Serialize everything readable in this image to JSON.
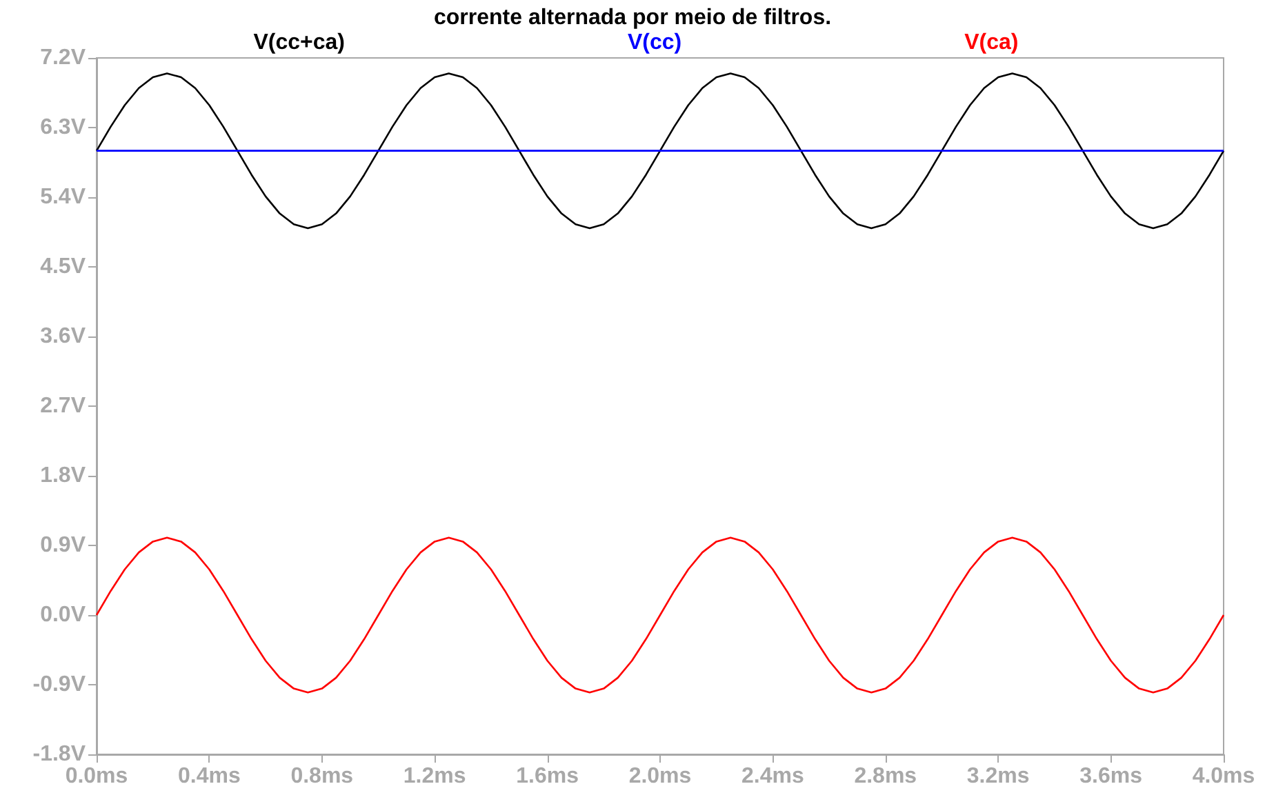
{
  "chart_data": {
    "type": "line",
    "title": "corrente alternada por meio de filtros.",
    "x": [
      0,
      0.05,
      0.1,
      0.15,
      0.2,
      0.25,
      0.3,
      0.35,
      0.4,
      0.45,
      0.5,
      0.55,
      0.6,
      0.65,
      0.7,
      0.75,
      0.8,
      0.85,
      0.9,
      0.95,
      1,
      1.05,
      1.1,
      1.15,
      1.2,
      1.25,
      1.3,
      1.35,
      1.4,
      1.45,
      1.5,
      1.55,
      1.6,
      1.65,
      1.7,
      1.75,
      1.8,
      1.85,
      1.9,
      1.95,
      2,
      2.05,
      2.1,
      2.15,
      2.2,
      2.25,
      2.3,
      2.35,
      2.4,
      2.45,
      2.5,
      2.55,
      2.6,
      2.65,
      2.7,
      2.75,
      2.8,
      2.85,
      2.9,
      2.95,
      3,
      3.05,
      3.1,
      3.15,
      3.2,
      3.25,
      3.3,
      3.35,
      3.4,
      3.45,
      3.5,
      3.55,
      3.6,
      3.65,
      3.7,
      3.75,
      3.8,
      3.85,
      3.9,
      3.95,
      4
    ],
    "series": [
      {
        "name": "V(cc+ca)",
        "color": "#000000",
        "values": [
          6,
          6.31,
          6.59,
          6.81,
          6.95,
          7,
          6.95,
          6.81,
          6.59,
          6.31,
          6,
          5.69,
          5.41,
          5.19,
          5.05,
          5,
          5.05,
          5.19,
          5.41,
          5.69,
          6,
          6.31,
          6.59,
          6.81,
          6.95,
          7,
          6.95,
          6.81,
          6.59,
          6.31,
          6,
          5.69,
          5.41,
          5.19,
          5.05,
          5,
          5.05,
          5.19,
          5.41,
          5.69,
          6,
          6.31,
          6.59,
          6.81,
          6.95,
          7,
          6.95,
          6.81,
          6.59,
          6.31,
          6,
          5.69,
          5.41,
          5.19,
          5.05,
          5,
          5.05,
          5.19,
          5.41,
          5.69,
          6,
          6.31,
          6.59,
          6.81,
          6.95,
          7,
          6.95,
          6.81,
          6.59,
          6.31,
          6,
          5.69,
          5.41,
          5.19,
          5.05,
          5,
          5.05,
          5.19,
          5.41,
          5.69,
          6
        ]
      },
      {
        "name": "V(cc)",
        "color": "#0000ff",
        "values": [
          6,
          6,
          6,
          6,
          6,
          6,
          6,
          6,
          6,
          6,
          6,
          6,
          6,
          6,
          6,
          6,
          6,
          6,
          6,
          6,
          6,
          6,
          6,
          6,
          6,
          6,
          6,
          6,
          6,
          6,
          6,
          6,
          6,
          6,
          6,
          6,
          6,
          6,
          6,
          6,
          6,
          6,
          6,
          6,
          6,
          6,
          6,
          6,
          6,
          6,
          6,
          6,
          6,
          6,
          6,
          6,
          6,
          6,
          6,
          6,
          6,
          6,
          6,
          6,
          6,
          6,
          6,
          6,
          6,
          6,
          6,
          6,
          6,
          6,
          6,
          6,
          6,
          6,
          6,
          6,
          6
        ]
      },
      {
        "name": "V(ca)",
        "color": "#ff0000",
        "values": [
          0,
          0.31,
          0.59,
          0.81,
          0.95,
          1,
          0.95,
          0.81,
          0.59,
          0.31,
          0,
          -0.31,
          -0.59,
          -0.81,
          -0.95,
          -1,
          -0.95,
          -0.81,
          -0.59,
          -0.31,
          0,
          0.31,
          0.59,
          0.81,
          0.95,
          1,
          0.95,
          0.81,
          0.59,
          0.31,
          0,
          -0.31,
          -0.59,
          -0.81,
          -0.95,
          -1,
          -0.95,
          -0.81,
          -0.59,
          -0.31,
          0,
          0.31,
          0.59,
          0.81,
          0.95,
          1,
          0.95,
          0.81,
          0.59,
          0.31,
          0,
          -0.31,
          -0.59,
          -0.81,
          -0.95,
          -1,
          -0.95,
          -0.81,
          -0.59,
          -0.31,
          0,
          0.31,
          0.59,
          0.81,
          0.95,
          1,
          0.95,
          0.81,
          0.59,
          0.31,
          0,
          -0.31,
          -0.59,
          -0.81,
          -0.95,
          -1,
          -0.95,
          -0.81,
          -0.59,
          -0.31,
          0
        ]
      }
    ],
    "xlim": [
      0,
      4
    ],
    "xticks": [
      {
        "value": 0,
        "label": "0.0ms"
      },
      {
        "value": 0.4,
        "label": "0.4ms"
      },
      {
        "value": 0.8,
        "label": "0.8ms"
      },
      {
        "value": 1.2,
        "label": "1.2ms"
      },
      {
        "value": 1.6,
        "label": "1.6ms"
      },
      {
        "value": 2,
        "label": "2.0ms"
      },
      {
        "value": 2.4,
        "label": "2.4ms"
      },
      {
        "value": 2.8,
        "label": "2.8ms"
      },
      {
        "value": 3.2,
        "label": "3.2ms"
      },
      {
        "value": 3.6,
        "label": "3.6ms"
      },
      {
        "value": 4,
        "label": "4.0ms"
      }
    ],
    "ylim": [
      -1.8,
      7.2
    ],
    "yticks": [
      {
        "value": -1.8,
        "label": "-1.8V"
      },
      {
        "value": -0.9,
        "label": "-0.9V"
      },
      {
        "value": 0,
        "label": "0.0V"
      },
      {
        "value": 0.9,
        "label": "0.9V"
      },
      {
        "value": 1.8,
        "label": "1.8V"
      },
      {
        "value": 2.7,
        "label": "2.7V"
      },
      {
        "value": 3.6,
        "label": "3.6V"
      },
      {
        "value": 4.5,
        "label": "4.5V"
      },
      {
        "value": 5.4,
        "label": "5.4V"
      },
      {
        "value": 6.3,
        "label": "6.3V"
      },
      {
        "value": 7.2,
        "label": "7.2V"
      }
    ],
    "grid": false,
    "legend": "top",
    "marker": "none",
    "line_style": "solid"
  }
}
